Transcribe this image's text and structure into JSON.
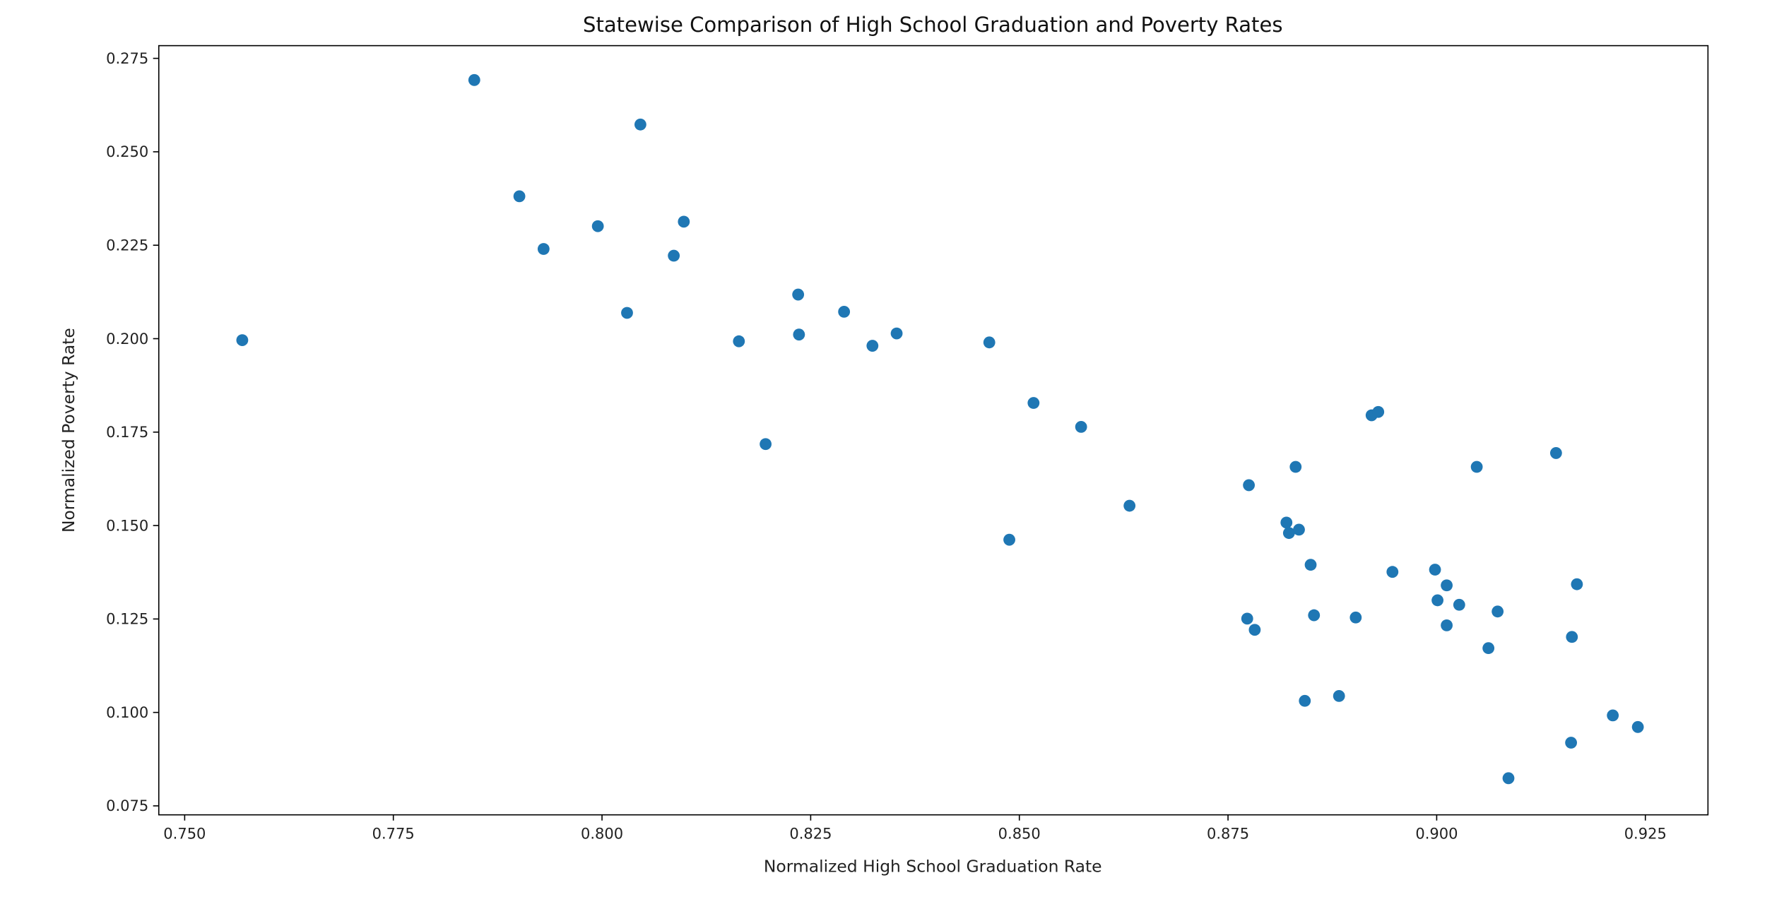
{
  "chart_data": {
    "type": "scatter",
    "title": "Statewise Comparison of High School Graduation and Poverty Rates",
    "xlabel": "Normalized High School Graduation Rate",
    "ylabel": "Normalized Poverty Rate",
    "xlim": [
      0.7469,
      0.9325
    ],
    "ylim": [
      0.0726,
      0.2784
    ],
    "xticks": [
      "0.750",
      "0.775",
      "0.800",
      "0.825",
      "0.850",
      "0.875",
      "0.900",
      "0.925"
    ],
    "yticks": [
      "0.075",
      "0.100",
      "0.125",
      "0.150",
      "0.175",
      "0.200",
      "0.225",
      "0.250",
      "0.275"
    ],
    "grid": false,
    "color": "#1f77b4",
    "points": [
      [
        0.7569,
        0.1996
      ],
      [
        0.7847,
        0.2692
      ],
      [
        0.7901,
        0.2381
      ],
      [
        0.793,
        0.224
      ],
      [
        0.7995,
        0.2301
      ],
      [
        0.803,
        0.2069
      ],
      [
        0.8046,
        0.2573
      ],
      [
        0.8098,
        0.2313
      ],
      [
        0.8086,
        0.2222
      ],
      [
        0.8164,
        0.1993
      ],
      [
        0.8196,
        0.1718
      ],
      [
        0.8235,
        0.2118
      ],
      [
        0.8236,
        0.2011
      ],
      [
        0.829,
        0.2072
      ],
      [
        0.8324,
        0.1981
      ],
      [
        0.8353,
        0.2014
      ],
      [
        0.8464,
        0.199
      ],
      [
        0.8488,
        0.1462
      ],
      [
        0.8517,
        0.1828
      ],
      [
        0.8574,
        0.1764
      ],
      [
        0.8632,
        0.1553
      ],
      [
        0.8773,
        0.1251
      ],
      [
        0.8775,
        0.1608
      ],
      [
        0.8782,
        0.1221
      ],
      [
        0.882,
        0.1508
      ],
      [
        0.8823,
        0.148
      ],
      [
        0.8831,
        0.1657
      ],
      [
        0.8835,
        0.1489
      ],
      [
        0.8842,
        0.1031
      ],
      [
        0.8849,
        0.1395
      ],
      [
        0.8853,
        0.126
      ],
      [
        0.8883,
        0.1044
      ],
      [
        0.8903,
        0.1254
      ],
      [
        0.8922,
        0.1795
      ],
      [
        0.893,
        0.1804
      ],
      [
        0.8947,
        0.1376
      ],
      [
        0.8998,
        0.1382
      ],
      [
        0.9001,
        0.13
      ],
      [
        0.9012,
        0.134
      ],
      [
        0.9012,
        0.1233
      ],
      [
        0.9027,
        0.1288
      ],
      [
        0.9048,
        0.1657
      ],
      [
        0.9062,
        0.1172
      ],
      [
        0.9073,
        0.127
      ],
      [
        0.9086,
        0.0824
      ],
      [
        0.9143,
        0.1694
      ],
      [
        0.9161,
        0.0919
      ],
      [
        0.9162,
        0.1202
      ],
      [
        0.9168,
        0.1343
      ],
      [
        0.9211,
        0.0992
      ],
      [
        0.9241,
        0.0961
      ]
    ]
  }
}
